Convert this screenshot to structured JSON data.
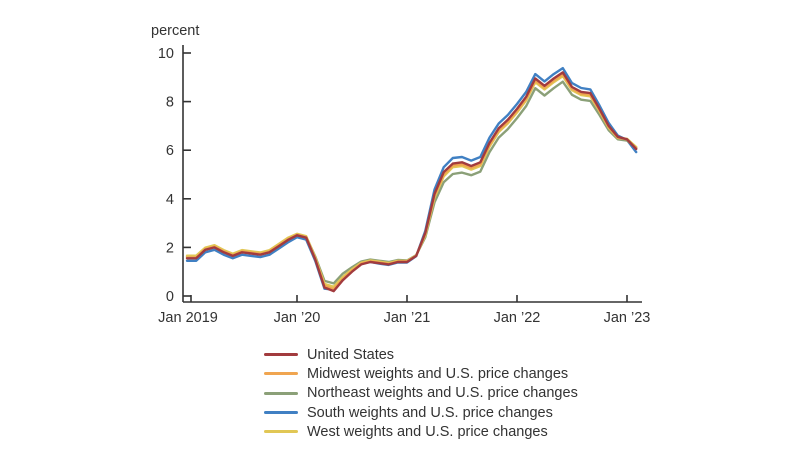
{
  "chart": {
    "y_tick_labels": [
      "10",
      "8",
      "6",
      "4",
      "2",
      "0"
    ],
    "x_tick_labels": [
      "Jan 2019",
      "Jan ’20",
      "Jan ’21",
      "Jan ’22",
      "Jan ’23"
    ]
  },
  "chart_data": {
    "type": "line",
    "title": "",
    "xlabel": "",
    "ylabel": "percent",
    "ylim": [
      0,
      10
    ],
    "y_tick_values": [
      0,
      2,
      4,
      6,
      8,
      10
    ],
    "grid": false,
    "legend_position": "bottom-left",
    "x_start": "Jan 2019",
    "x_end": "Feb 2023",
    "frequency": "monthly",
    "x_tick_labels": [
      "Jan 2019",
      "Jan ’20",
      "Jan ’21",
      "Jan ’22",
      "Jan ’23"
    ],
    "series": [
      {
        "name": "United States",
        "color": "#a23b3e",
        "values": [
          1.55,
          1.55,
          1.9,
          2.0,
          1.8,
          1.65,
          1.8,
          1.75,
          1.7,
          1.8,
          2.05,
          2.3,
          2.5,
          2.4,
          1.5,
          0.35,
          0.2,
          0.65,
          1.0,
          1.3,
          1.4,
          1.35,
          1.3,
          1.4,
          1.4,
          1.65,
          2.6,
          4.2,
          5.1,
          5.45,
          5.5,
          5.35,
          5.5,
          6.3,
          6.9,
          7.25,
          7.7,
          8.2,
          8.95,
          8.65,
          8.95,
          9.2,
          8.6,
          8.4,
          8.35,
          7.7,
          7.0,
          6.55,
          6.45,
          6.05
        ]
      },
      {
        "name": "Midwest weights and U.S. price changes",
        "color": "#f0a550",
        "values": [
          1.58,
          1.58,
          1.93,
          2.03,
          1.83,
          1.68,
          1.83,
          1.78,
          1.73,
          1.83,
          2.08,
          2.33,
          2.52,
          2.42,
          1.54,
          0.42,
          0.28,
          0.7,
          1.04,
          1.33,
          1.42,
          1.37,
          1.32,
          1.42,
          1.42,
          1.66,
          2.55,
          4.12,
          5.0,
          5.37,
          5.42,
          5.27,
          5.42,
          6.22,
          6.82,
          7.17,
          7.62,
          8.12,
          8.87,
          8.57,
          8.87,
          9.12,
          8.53,
          8.33,
          8.28,
          7.64,
          6.95,
          6.52,
          6.44,
          6.08
        ]
      },
      {
        "name": "Northeast weights and U.S. price changes",
        "color": "#8ba078",
        "values": [
          1.62,
          1.62,
          1.96,
          2.06,
          1.86,
          1.71,
          1.86,
          1.81,
          1.76,
          1.86,
          2.11,
          2.36,
          2.54,
          2.44,
          1.62,
          0.62,
          0.52,
          0.92,
          1.18,
          1.42,
          1.5,
          1.45,
          1.4,
          1.48,
          1.46,
          1.68,
          2.42,
          3.85,
          4.68,
          5.02,
          5.08,
          4.97,
          5.12,
          5.92,
          6.52,
          6.87,
          7.32,
          7.82,
          8.55,
          8.25,
          8.55,
          8.82,
          8.28,
          8.08,
          8.03,
          7.45,
          6.82,
          6.45,
          6.4,
          6.1
        ]
      },
      {
        "name": "South weights and U.S. price changes",
        "color": "#4080c3",
        "values": [
          1.45,
          1.45,
          1.8,
          1.9,
          1.7,
          1.55,
          1.7,
          1.65,
          1.6,
          1.7,
          1.95,
          2.2,
          2.42,
          2.32,
          1.44,
          0.3,
          0.26,
          0.72,
          1.04,
          1.32,
          1.4,
          1.33,
          1.28,
          1.38,
          1.38,
          1.64,
          2.68,
          4.38,
          5.3,
          5.68,
          5.72,
          5.57,
          5.72,
          6.52,
          7.1,
          7.45,
          7.9,
          8.4,
          9.13,
          8.83,
          9.13,
          9.38,
          8.76,
          8.56,
          8.5,
          7.84,
          7.12,
          6.6,
          6.42,
          5.92
        ]
      },
      {
        "name": "West weights and U.S. price changes",
        "color": "#e1c755",
        "values": [
          1.66,
          1.66,
          1.99,
          2.09,
          1.89,
          1.74,
          1.89,
          1.84,
          1.79,
          1.89,
          2.14,
          2.39,
          2.56,
          2.46,
          1.58,
          0.5,
          0.38,
          0.78,
          1.1,
          1.37,
          1.46,
          1.41,
          1.36,
          1.45,
          1.44,
          1.67,
          2.5,
          4.05,
          4.92,
          5.3,
          5.35,
          5.2,
          5.35,
          6.15,
          6.75,
          7.1,
          7.55,
          8.05,
          8.8,
          8.5,
          8.8,
          9.05,
          8.47,
          8.27,
          8.22,
          7.6,
          6.92,
          6.5,
          6.47,
          6.13
        ]
      }
    ]
  }
}
